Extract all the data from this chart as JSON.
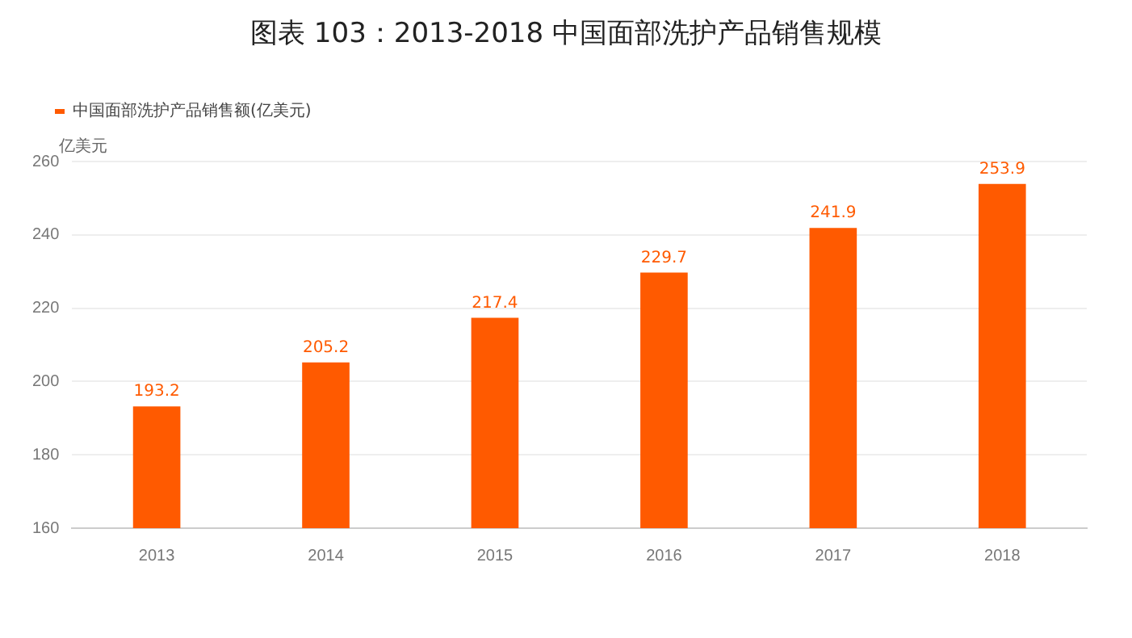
{
  "chart_data": {
    "type": "bar",
    "title": "图表 103：2013-2018 中国面部洗护产品销售规模",
    "ylabel": "亿美元",
    "categories": [
      "2013",
      "2014",
      "2015",
      "2016",
      "2017",
      "2018"
    ],
    "series": [
      {
        "name": "中国面部洗护产品销售额(亿美元)",
        "color": "#ff5a00",
        "values": [
          193.2,
          205.2,
          217.4,
          229.7,
          241.9,
          253.9
        ]
      }
    ],
    "ylim": [
      160,
      260
    ],
    "yticks": [
      160,
      180,
      200,
      220,
      240,
      260
    ],
    "grid": "y",
    "legend": "top left",
    "data_labels": true
  }
}
